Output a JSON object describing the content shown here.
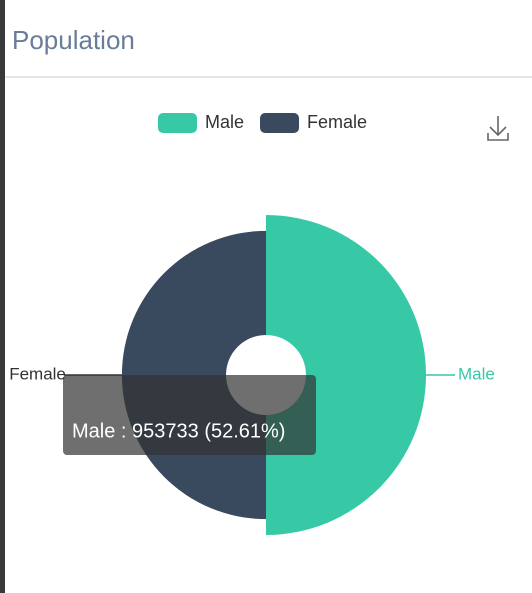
{
  "chart_data": {
    "type": "pie",
    "rose_type": "radius",
    "title": "Population",
    "categories": [
      "Male",
      "Female"
    ],
    "values": [
      953733,
      859103
    ],
    "colors": [
      "#37c8a6",
      "#3a4a5e"
    ],
    "tooltip": "Male : 953733 (52.61%)"
  }
}
